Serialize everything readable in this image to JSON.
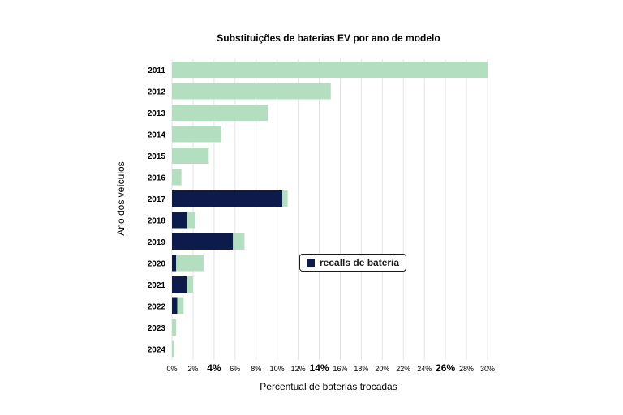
{
  "chart_data": {
    "type": "bar",
    "orientation": "horizontal",
    "stacked": true,
    "title": "Substituições de baterias EV por ano de modelo",
    "xlabel": "Percentual de baterias trocadas",
    "ylabel": "Ano dos veículos",
    "categories": [
      "2011",
      "2012",
      "2013",
      "2014",
      "2015",
      "2016",
      "2017",
      "2018",
      "2019",
      "2020",
      "2021",
      "2022",
      "2023",
      "2024"
    ],
    "series": [
      {
        "name": "recalls de bateria",
        "color": "#0d1b4c",
        "values": [
          0,
          0,
          0,
          0,
          0,
          0,
          10.5,
          1.4,
          5.8,
          0.4,
          1.4,
          0.5,
          0,
          0
        ]
      },
      {
        "name": "",
        "color": "#b3dfc0",
        "values": [
          30,
          15.1,
          9.1,
          4.7,
          3.5,
          0.9,
          0.5,
          0.8,
          1.1,
          2.6,
          0.6,
          0.6,
          0.4,
          0.2
        ]
      }
    ],
    "xlim": [
      0,
      30
    ],
    "xticks": [
      "0%",
      "2%",
      "4%",
      "6%",
      "8%",
      "10%",
      "12%",
      "14%",
      "16%",
      "18%",
      "20%",
      "22%",
      "24%",
      "26%",
      "28%",
      "30%"
    ],
    "emphasized_xticks": [
      "4%",
      "14%",
      "26%"
    ],
    "grid": "vertical",
    "legend": {
      "label": "recalls de bateria",
      "position": "center-right"
    }
  }
}
